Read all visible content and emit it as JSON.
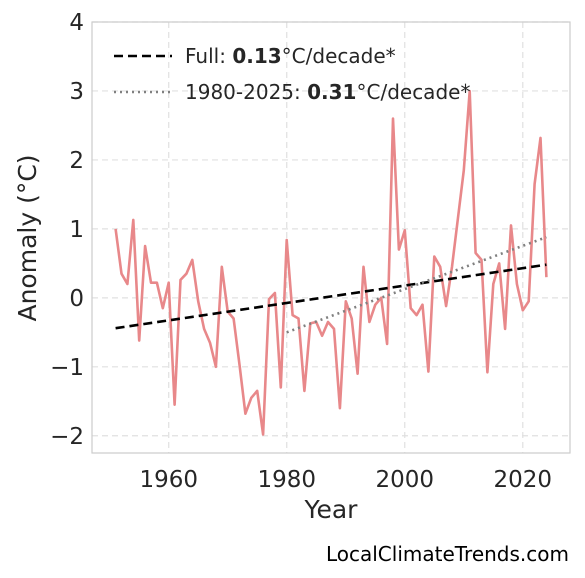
{
  "chart_data": {
    "type": "line",
    "xlabel": "Year",
    "ylabel": "Anomaly (°C)",
    "xlim": [
      1947,
      2028
    ],
    "ylim": [
      -2.25,
      4.0
    ],
    "xticks": [
      1960,
      1980,
      2000,
      2020
    ],
    "yticks": [
      -2,
      -1,
      0,
      1,
      2,
      3,
      4
    ],
    "ytick_labels": [
      "−2",
      "−1",
      "0",
      "1",
      "2",
      "3",
      "4"
    ],
    "grid": true,
    "legend_position": "top-left",
    "series": [
      {
        "color": "#e8888a",
        "x": [
          1951,
          1952,
          1953,
          1954,
          1955,
          1956,
          1957,
          1958,
          1959,
          1960,
          1961,
          1962,
          1963,
          1964,
          1965,
          1966,
          1967,
          1968,
          1969,
          1970,
          1971,
          1972,
          1973,
          1974,
          1975,
          1976,
          1977,
          1978,
          1979,
          1980,
          1981,
          1982,
          1983,
          1984,
          1985,
          1986,
          1987,
          1988,
          1989,
          1990,
          1991,
          1992,
          1993,
          1994,
          1995,
          1996,
          1997,
          1998,
          1999,
          2000,
          2001,
          2002,
          2003,
          2004,
          2005,
          2006,
          2007,
          2008,
          2009,
          2010,
          2011,
          2012,
          2013,
          2014,
          2015,
          2016,
          2017,
          2018,
          2019,
          2020,
          2021,
          2022,
          2023,
          2024
        ],
        "y": [
          1.0,
          0.35,
          0.2,
          1.13,
          -0.62,
          0.75,
          0.22,
          0.22,
          -0.15,
          0.22,
          -1.55,
          0.26,
          0.35,
          0.55,
          -0.05,
          -0.45,
          -0.65,
          -1.0,
          0.45,
          -0.2,
          -0.3,
          -0.97,
          -1.68,
          -1.45,
          -1.35,
          -1.98,
          -0.02,
          0.07,
          -1.3,
          0.84,
          -0.25,
          -0.3,
          -1.35,
          -0.37,
          -0.35,
          -0.55,
          -0.35,
          -0.45,
          -1.6,
          -0.05,
          -0.3,
          -1.1,
          0.45,
          -0.35,
          -0.1,
          0.0,
          -0.67,
          2.6,
          0.7,
          0.98,
          -0.15,
          -0.25,
          -0.1,
          -1.07,
          0.6,
          0.45,
          -0.12,
          0.45,
          1.15,
          1.85,
          3.0,
          0.65,
          0.55,
          -1.08,
          0.2,
          0.5,
          -0.45,
          1.05,
          0.2,
          -0.18,
          -0.05,
          1.65,
          2.32,
          0.3
        ]
      },
      {
        "name": "Full",
        "trend_label": "0.13",
        "unit_label": "°C/decade*",
        "style": "dashed",
        "color": "#000000",
        "x": [
          1951,
          2024
        ],
        "y": [
          -0.44,
          0.48
        ]
      },
      {
        "name": "1980-2025",
        "trend_label": "0.31",
        "unit_label": "°C/decade*",
        "style": "dotted",
        "color": "#808080",
        "x": [
          1980,
          2024
        ],
        "y": [
          -0.5,
          0.88
        ]
      }
    ]
  },
  "watermark": "LocalClimateTrends.com"
}
